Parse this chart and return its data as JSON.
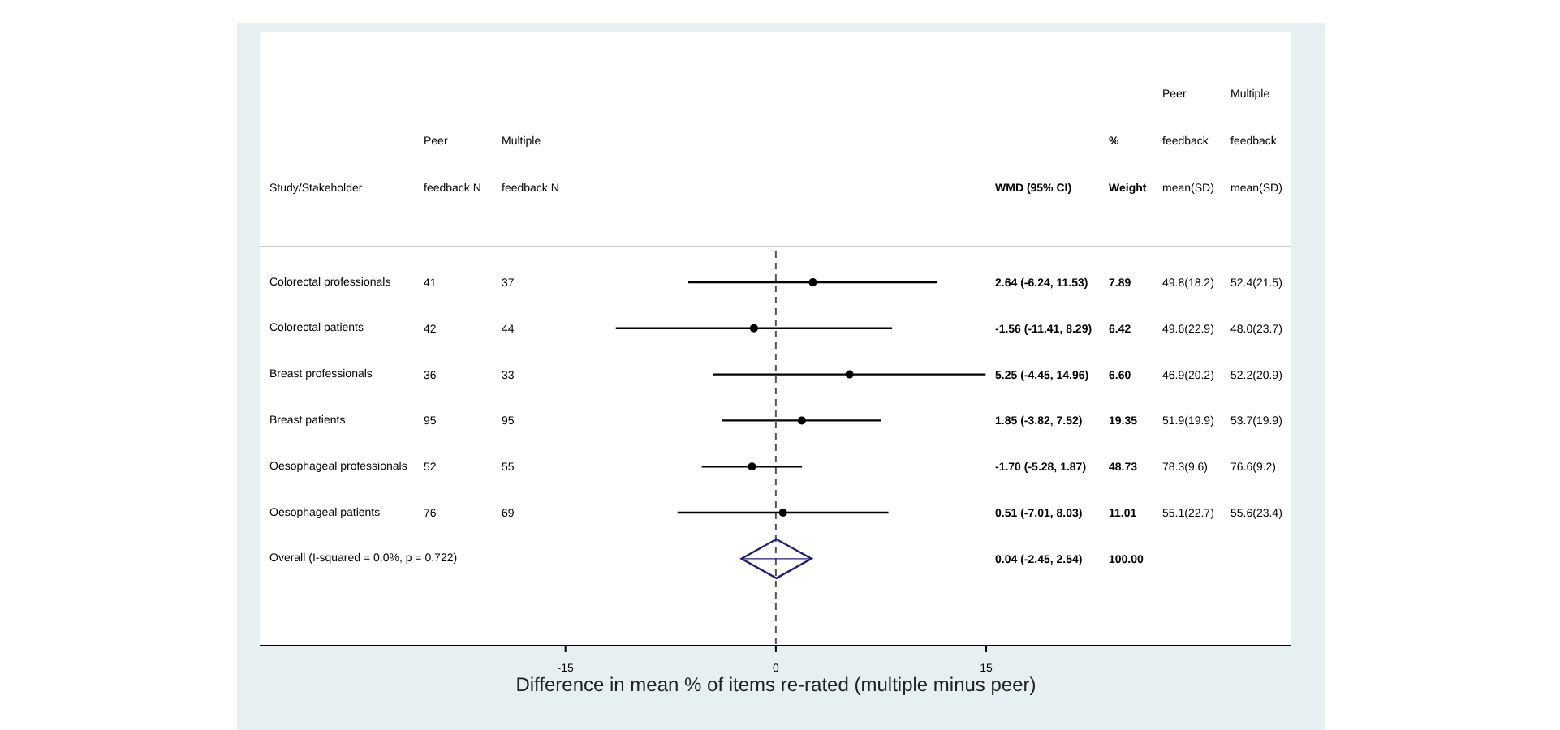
{
  "chart_data": {
    "type": "scatter",
    "orientation": "horizontal",
    "ylabel": "Study/Stakeholder",
    "xlabel": "Difference in mean % of items re-rated (multiple minus peer)",
    "categories": [
      "Colorectal professionals",
      "Colorectal patients",
      "Breast professionals",
      "Breast patients",
      "Oesophageal professionals",
      "Oesophageal patients",
      "Overall  (I-squared = 0.0%, p = 0.722)"
    ],
    "series": [
      {
        "marker": "circle",
        "color": "#000000",
        "values": [
          2.64,
          -1.56,
          5.25,
          1.85,
          -1.7,
          0.51,
          null
        ],
        "errors": [
          [
            -6.24,
            11.53
          ],
          [
            -11.41,
            8.29
          ],
          [
            -4.45,
            14.96
          ],
          [
            -3.82,
            7.52
          ],
          [
            -5.28,
            1.87
          ],
          [
            -7.01,
            8.03
          ],
          null
        ]
      },
      {
        "marker": "diamond",
        "color": "#1f1f7a",
        "values": [
          null,
          null,
          null,
          null,
          null,
          null,
          0.04
        ],
        "errors": [
          null,
          null,
          null,
          null,
          null,
          null,
          [
            -2.45,
            2.54
          ]
        ]
      }
    ],
    "xlim": [
      -36.8,
      36.7
    ],
    "xticks": [
      -15,
      0,
      15
    ],
    "ref_lines": [
      {
        "axis": "x",
        "value": 0,
        "line_style": "dashed",
        "color": "#555555"
      }
    ],
    "annotations": [
      "Peer\nfeedback N",
      "Multiple\nfeedback N",
      "WMD (95% CI)",
      "%\nWeight",
      "Peer\nfeedback\nmean(SD)",
      "Multiple\nfeedback\nmean(SD)",
      "2.64 (-6.24, 11.53)",
      "7.89",
      "49.8(18.2)",
      "52.4(21.5)",
      "41",
      "37",
      "-1.56 (-11.41, 8.29)",
      "6.42",
      "49.6(22.9)",
      "48.0(23.7)",
      "42",
      "44",
      "5.25 (-4.45, 14.96)",
      "6.60",
      "46.9(20.2)",
      "52.2(20.9)",
      "36",
      "33",
      "1.85 (-3.82, 7.52)",
      "19.35",
      "51.9(19.9)",
      "53.7(19.9)",
      "95",
      "95",
      "-1.70 (-5.28, 1.87)",
      "48.73",
      "78.3(9.6)",
      "76.6(9.2)",
      "52",
      "55",
      "0.51 (-7.01, 8.03)",
      "11.01",
      "55.1(22.7)",
      "55.6(23.4)",
      "76",
      "69",
      "0.04 (-2.45, 2.54)",
      "100.00"
    ]
  }
}
